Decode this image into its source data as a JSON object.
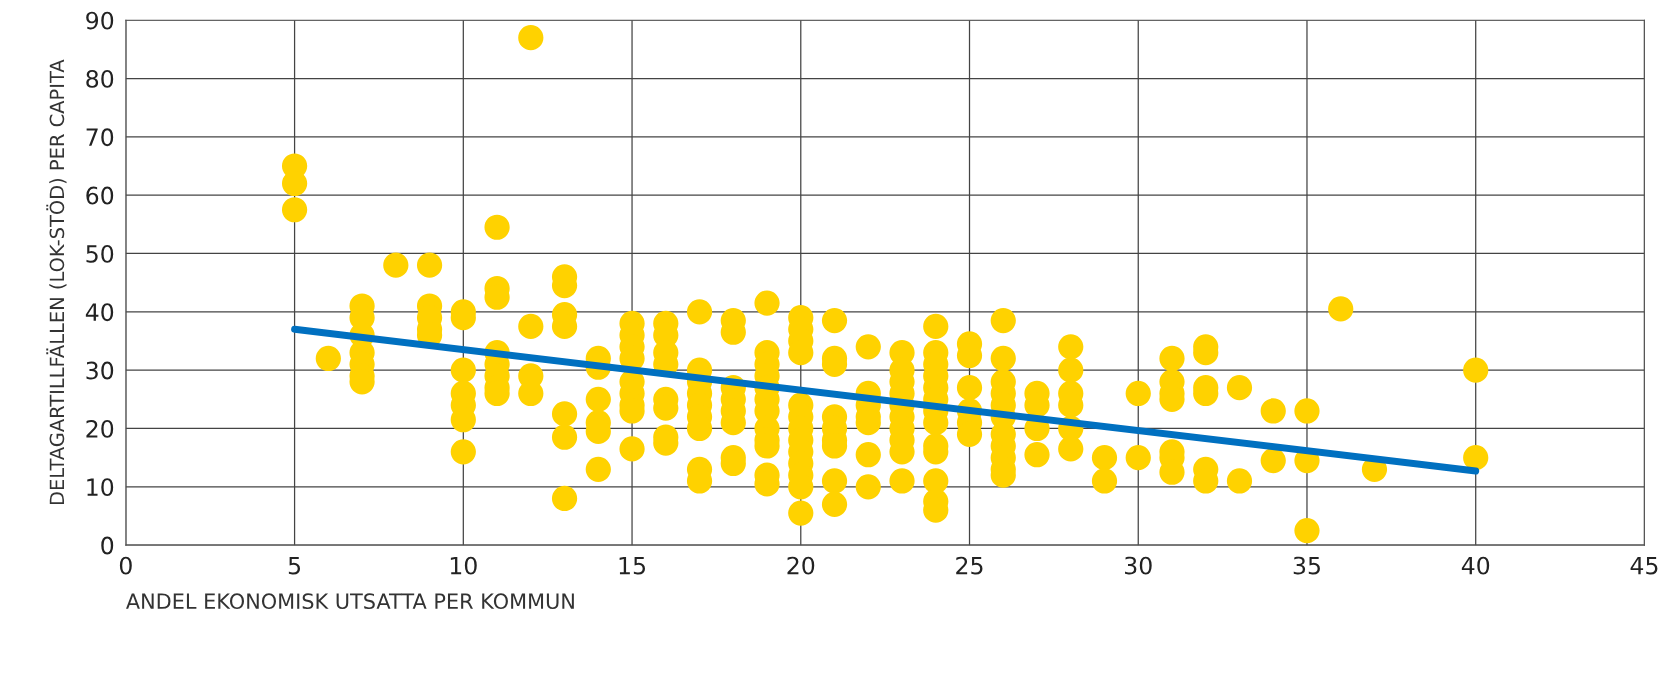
{
  "chart_data": {
    "type": "scatter",
    "xlabel": "ANDEL EKONOMISK UTSATTA PER KOMMUN",
    "ylabel": "DELTAGARTILLFÄLLEN (LOK-STÖD) PER CAPITA",
    "xlim": [
      0,
      45
    ],
    "xticks": [
      0,
      5,
      10,
      15,
      20,
      25,
      30,
      35,
      40,
      45
    ],
    "ylim": [
      0,
      90
    ],
    "yticks": [
      0,
      10,
      20,
      30,
      40,
      50,
      60,
      70,
      80,
      90
    ],
    "grid": true,
    "marker": "circle",
    "series": [
      {
        "color": "#ffd200",
        "x": [
          5,
          5,
          5,
          6,
          7,
          7,
          7,
          7,
          7,
          7,
          7,
          8,
          9,
          9,
          9,
          9,
          9,
          10,
          10,
          10,
          10,
          10,
          10,
          10,
          11,
          11,
          11,
          11,
          11,
          11,
          11,
          11,
          12,
          12,
          12,
          12,
          13,
          13,
          13,
          13,
          13,
          13,
          13,
          14,
          14,
          14,
          14,
          14,
          14,
          15,
          15,
          15,
          15,
          15,
          15,
          15,
          15,
          15,
          16,
          16,
          16,
          16,
          16,
          16,
          16,
          16,
          17,
          17,
          17,
          17,
          17,
          17,
          17,
          17,
          17,
          18,
          18,
          18,
          18,
          18,
          18,
          18,
          18,
          19,
          19,
          19,
          19,
          19,
          19,
          19,
          19,
          19,
          19,
          19,
          19,
          20,
          20,
          20,
          20,
          20,
          20,
          20,
          20,
          20,
          20,
          20,
          20,
          20,
          21,
          21,
          21,
          21,
          21,
          21,
          21,
          21,
          21,
          22,
          22,
          22,
          22,
          22,
          22,
          22,
          23,
          23,
          23,
          23,
          23,
          23,
          23,
          23,
          23,
          23,
          24,
          24,
          24,
          24,
          24,
          24,
          24,
          24,
          24,
          24,
          24,
          24,
          24,
          25,
          25,
          25,
          25,
          25,
          25,
          26,
          26,
          26,
          26,
          26,
          26,
          26,
          26,
          26,
          26,
          26,
          27,
          27,
          27,
          27,
          28,
          28,
          28,
          28,
          28,
          28,
          29,
          29,
          30,
          30,
          31,
          31,
          31,
          31,
          31,
          31,
          31,
          32,
          32,
          32,
          32,
          32,
          32,
          33,
          33,
          34,
          34,
          35,
          35,
          35,
          36,
          37,
          40,
          40
        ],
        "values": [
          65,
          62,
          57.5,
          32,
          41,
          39,
          36,
          33,
          31,
          29,
          28,
          48,
          48,
          41,
          39,
          37,
          36,
          40,
          39,
          30,
          26,
          24,
          21.5,
          16,
          54.5,
          44,
          42.5,
          33,
          31,
          29,
          27,
          26,
          87,
          37.5,
          29,
          26,
          46,
          44.5,
          39.5,
          37.5,
          22.5,
          18.5,
          8,
          32,
          30.5,
          25,
          21,
          19.5,
          13,
          38,
          36,
          34,
          32,
          28,
          26,
          24,
          23,
          16.5,
          38,
          36,
          33,
          31,
          25,
          23.5,
          18.5,
          17.5,
          40,
          30,
          28,
          26,
          24,
          22,
          20,
          13,
          11,
          38.5,
          36.5,
          27,
          25,
          23,
          21,
          15,
          14,
          41.5,
          33,
          31,
          29,
          27,
          25,
          23,
          20,
          18,
          17,
          12,
          10.5,
          39,
          37,
          35,
          33,
          24,
          22,
          20,
          18,
          16,
          14,
          12,
          10,
          5.5,
          38.5,
          32,
          31,
          22,
          20,
          18,
          17,
          11,
          7,
          34,
          26,
          24,
          22,
          21,
          15.5,
          10,
          33,
          30,
          28,
          26,
          24,
          22,
          20,
          18,
          16,
          11,
          37.5,
          33,
          31,
          29,
          27,
          25,
          23,
          21,
          17,
          16,
          11,
          7.5,
          6,
          34.5,
          32.5,
          27,
          23,
          21,
          19,
          38.5,
          32,
          28,
          26,
          24,
          22,
          19,
          17,
          15,
          13,
          12,
          26,
          24,
          20,
          15.5,
          34,
          30,
          26,
          24,
          20,
          16.5,
          15,
          11,
          26,
          15,
          32,
          28,
          26,
          25,
          16,
          15,
          12.5,
          34,
          33,
          27,
          26,
          13,
          11,
          27,
          11,
          23,
          14.5,
          23,
          14.5,
          2.5,
          40.5,
          13,
          30,
          15
        ]
      },
      {
        "type": "line",
        "color": "#0070c0",
        "x": [
          5,
          40
        ],
        "values": [
          37,
          12.7
        ],
        "marker": "none"
      }
    ]
  }
}
